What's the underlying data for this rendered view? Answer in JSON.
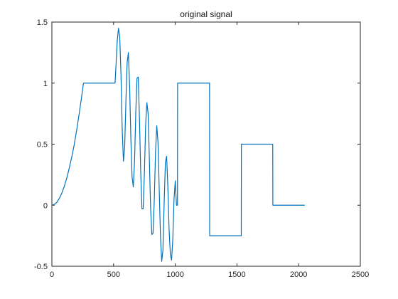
{
  "chart_data": {
    "type": "line",
    "title": "original signal",
    "xlabel": "",
    "ylabel": "",
    "xlim": [
      0,
      2500
    ],
    "ylim": [
      -0.5,
      1.5
    ],
    "x_ticks": [
      0,
      500,
      1000,
      1500,
      2000,
      2500
    ],
    "y_ticks": [
      -0.5,
      0,
      0.5,
      1,
      1.5
    ],
    "x_tick_labels": [
      "0",
      "500",
      "1000",
      "1500",
      "2000",
      "2500"
    ],
    "y_tick_labels": [
      "-0.5",
      "0",
      "0.5",
      "1",
      "1.5"
    ],
    "grid": false,
    "box": true,
    "line_color": "#0072BD",
    "series": [
      {
        "x": [
          0,
          20,
          40,
          60,
          80,
          100,
          120,
          140,
          160,
          180,
          200,
          220,
          240,
          256,
          300,
          400,
          512,
          520,
          530,
          540,
          550,
          560,
          570,
          580,
          590,
          600,
          610,
          620,
          630,
          640,
          650,
          660,
          670,
          680,
          690,
          700,
          710,
          720,
          730,
          740,
          750,
          760,
          770,
          780,
          790,
          800,
          810,
          820,
          830,
          840,
          850,
          860,
          870,
          880,
          890,
          900,
          910,
          920,
          930,
          940,
          950,
          960,
          970,
          980,
          990,
          1000,
          1010,
          1018,
          1019,
          1100,
          1200,
          1278,
          1279,
          1400,
          1500,
          1535,
          1536,
          1700,
          1790,
          1791,
          1900,
          2000,
          2047
        ],
        "y": [
          0,
          0.006,
          0.024,
          0.055,
          0.098,
          0.153,
          0.22,
          0.3,
          0.39,
          0.49,
          0.61,
          0.74,
          0.88,
          1,
          1,
          1,
          1,
          1.15,
          1.35,
          1.45,
          1.38,
          1.07,
          0.62,
          0.36,
          0.48,
          0.85,
          1.17,
          1.25,
          0.98,
          0.55,
          0.23,
          0.15,
          0.36,
          0.76,
          1.04,
          1.05,
          0.7,
          0.27,
          -0.03,
          -0.03,
          0.27,
          0.66,
          0.84,
          0.75,
          0.38,
          -0.02,
          -0.24,
          -0.23,
          0.05,
          0.43,
          0.65,
          0.52,
          0.13,
          -0.25,
          -0.46,
          -0.37,
          0.02,
          0.35,
          0.4,
          0.15,
          -0.2,
          -0.4,
          -0.45,
          -0.28,
          0.05,
          0.2,
          0,
          0,
          1,
          1,
          1,
          1,
          -0.25,
          -0.25,
          -0.25,
          -0.25,
          0.5,
          0.5,
          0.5,
          0,
          0,
          0,
          0
        ]
      }
    ]
  }
}
